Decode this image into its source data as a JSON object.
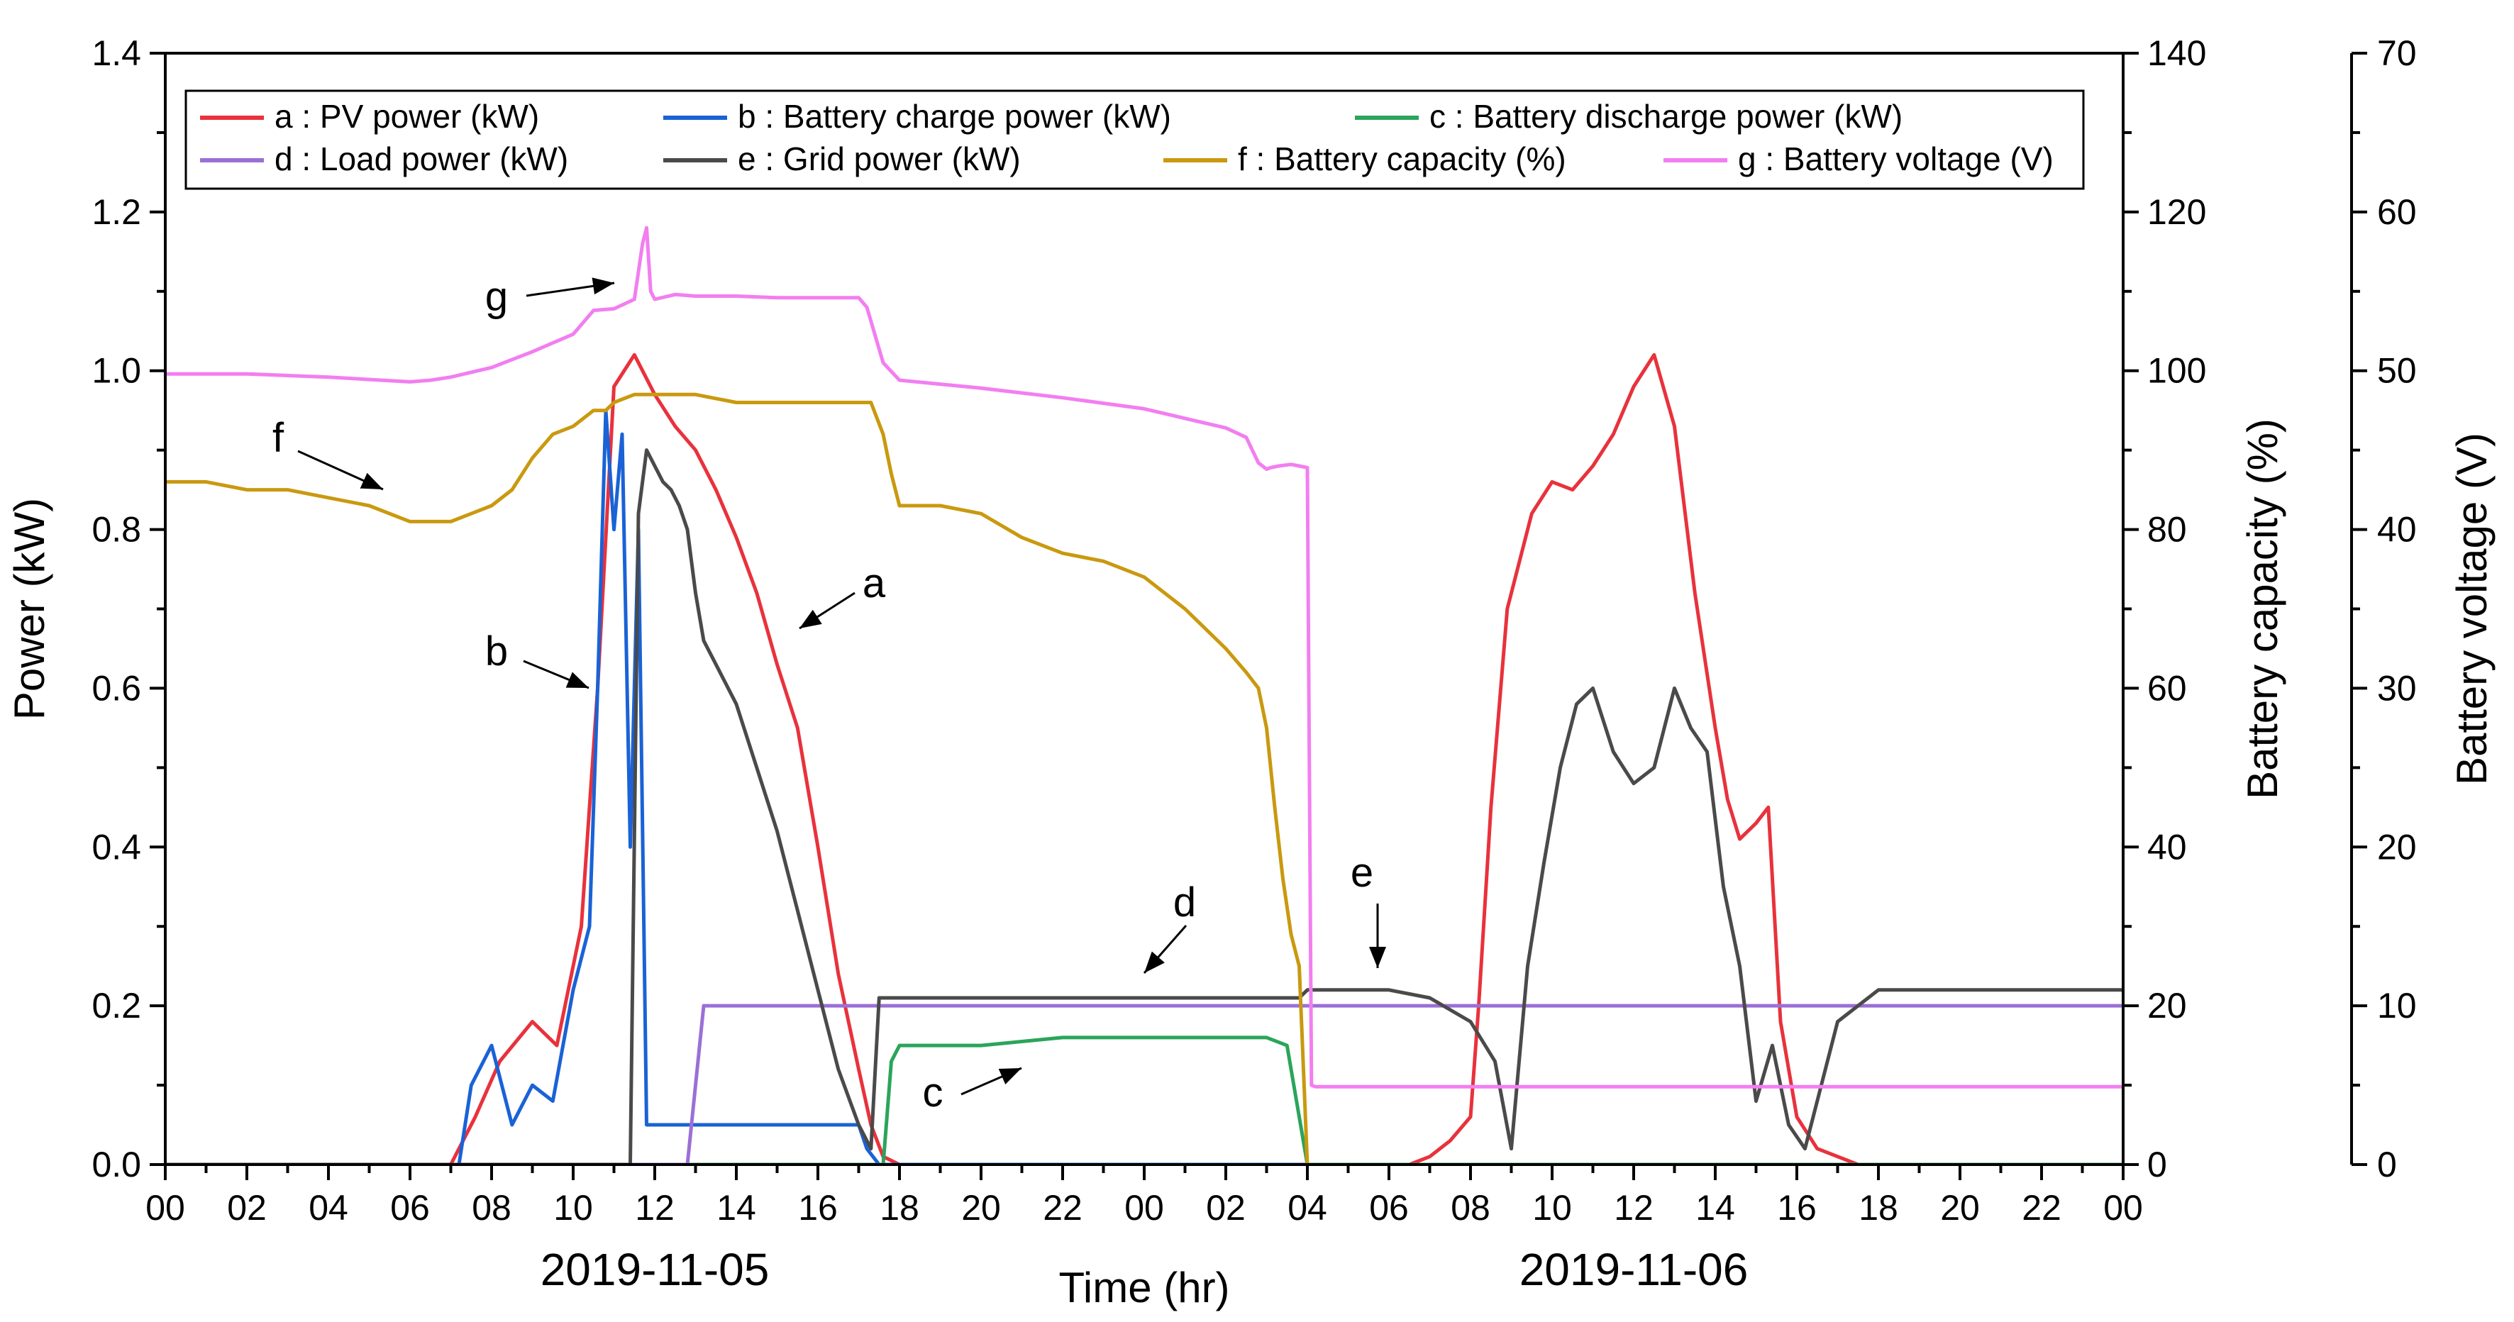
{
  "chart_data": {
    "type": "line",
    "title": "",
    "xlabel": "Time (hr)",
    "ylabel": "Power (kW)",
    "y2label": "Battery capacity (%)",
    "y3label": "Battery voltage (V)",
    "ylim": [
      0,
      1.4
    ],
    "y2lim": [
      0,
      140
    ],
    "y3lim": [
      0,
      70
    ],
    "yticks": [
      "0.0",
      "0.2",
      "0.4",
      "0.6",
      "0.8",
      "1.0",
      "1.2",
      "1.4"
    ],
    "y2ticks": [
      "0",
      "20",
      "40",
      "60",
      "80",
      "100",
      "120",
      "140"
    ],
    "y3ticks": [
      "0",
      "10",
      "20",
      "30",
      "40",
      "50",
      "60",
      "70"
    ],
    "xlim": [
      0,
      48
    ],
    "xticks": [
      "00",
      "02",
      "04",
      "06",
      "08",
      "10",
      "12",
      "14",
      "16",
      "18",
      "20",
      "22",
      "00",
      "02",
      "04",
      "06",
      "08",
      "10",
      "12",
      "14",
      "16",
      "18",
      "20",
      "22",
      "00"
    ],
    "dates": [
      "2019-11-05",
      "2019-11-06"
    ],
    "grid": false,
    "legend_position": "top-left",
    "series": [
      {
        "key": "a",
        "name": "a : PV power (kW)",
        "color": "#e8323c",
        "axis": "y1",
        "x": [
          0,
          7.0,
          7.6,
          8.2,
          9.0,
          9.6,
          10.2,
          10.6,
          11.0,
          11.5,
          12.0,
          12.5,
          13.0,
          13.5,
          14.0,
          14.5,
          15.0,
          15.5,
          16.0,
          16.5,
          17.0,
          17.3,
          17.6,
          18.0,
          30.5,
          31.0,
          31.5,
          32.0,
          32.2,
          32.5,
          32.9,
          33.5,
          34.0,
          34.5,
          35.0,
          35.5,
          36.0,
          36.5,
          37.0,
          37.5,
          38.0,
          38.3,
          38.6,
          39.0,
          39.3,
          39.6,
          40.0,
          40.5,
          41.5,
          48.0
        ],
        "y": [
          0,
          0,
          0.06,
          0.13,
          0.18,
          0.15,
          0.3,
          0.6,
          0.98,
          1.02,
          0.97,
          0.93,
          0.9,
          0.85,
          0.79,
          0.72,
          0.63,
          0.55,
          0.4,
          0.24,
          0.12,
          0.05,
          0.01,
          0,
          0,
          0.01,
          0.03,
          0.06,
          0.2,
          0.45,
          0.7,
          0.82,
          0.86,
          0.85,
          0.88,
          0.92,
          0.98,
          1.02,
          0.93,
          0.72,
          0.55,
          0.46,
          0.41,
          0.43,
          0.45,
          0.18,
          0.06,
          0.02,
          0,
          0
        ]
      },
      {
        "key": "b",
        "name": "b : Battery charge power (kW)",
        "color": "#1a62d6",
        "axis": "y1",
        "x": [
          0,
          7.2,
          7.5,
          8.0,
          8.5,
          9.0,
          9.5,
          10.0,
          10.4,
          10.6,
          10.8,
          11.0,
          11.2,
          11.4,
          11.6,
          11.8,
          12.0,
          13.0,
          13.5,
          14.0,
          15.0,
          16.0,
          16.5,
          17.0,
          17.2,
          17.5,
          48.0
        ],
        "y": [
          0,
          0,
          0.1,
          0.15,
          0.05,
          0.1,
          0.08,
          0.22,
          0.3,
          0.6,
          0.95,
          0.8,
          0.92,
          0.4,
          0.8,
          0.05,
          0.05,
          0.05,
          0.05,
          0.05,
          0.05,
          0.05,
          0.05,
          0.05,
          0.02,
          0,
          0
        ]
      },
      {
        "key": "c",
        "name": "c : Battery discharge power (kW)",
        "color": "#2aa55a",
        "axis": "y1",
        "x": [
          0,
          17.6,
          17.8,
          18.0,
          20.0,
          22.0,
          24.0,
          25.0,
          26.0,
          27.0,
          27.5,
          28.0,
          48.0
        ],
        "y": [
          0,
          0,
          0.13,
          0.15,
          0.15,
          0.16,
          0.16,
          0.16,
          0.16,
          0.16,
          0.15,
          0,
          0
        ]
      },
      {
        "key": "d",
        "name": "d : Load power (kW)",
        "color": "#9b6fd6",
        "axis": "y1",
        "x": [
          0,
          12.8,
          13.0,
          13.2,
          14.0,
          16.0,
          18.0,
          20.0,
          22.0,
          24.0,
          26.0,
          28.0,
          30.0,
          32.0,
          34.0,
          36.0,
          38.0,
          40.0,
          42.0,
          44.0,
          46.0,
          48.0
        ],
        "y": [
          0,
          0,
          0.1,
          0.2,
          0.2,
          0.2,
          0.2,
          0.2,
          0.2,
          0.2,
          0.2,
          0.2,
          0.2,
          0.2,
          0.2,
          0.2,
          0.2,
          0.2,
          0.2,
          0.2,
          0.2,
          0.2
        ]
      },
      {
        "key": "e",
        "name": "e : Grid power (kW)",
        "color": "#4a4a4a",
        "axis": "y1",
        "x": [
          0,
          11.4,
          11.6,
          11.8,
          12.0,
          12.2,
          12.4,
          12.6,
          12.8,
          13.0,
          13.2,
          13.5,
          14.0,
          14.5,
          15.0,
          15.5,
          16.0,
          16.5,
          17.0,
          17.3,
          17.5,
          17.7,
          27.5,
          27.8,
          28.0,
          30.0,
          31.0,
          32.0,
          32.6,
          33.0,
          33.4,
          33.8,
          34.2,
          34.6,
          35.0,
          35.5,
          36.0,
          36.5,
          37.0,
          37.4,
          37.8,
          38.2,
          38.6,
          39.0,
          39.4,
          39.8,
          40.2,
          40.6,
          41.0,
          42.0,
          44.0,
          46.0,
          48.0
        ],
        "y": [
          0,
          0,
          0.82,
          0.9,
          0.88,
          0.86,
          0.85,
          0.83,
          0.8,
          0.72,
          0.66,
          0.63,
          0.58,
          0.5,
          0.42,
          0.32,
          0.22,
          0.12,
          0.05,
          0.02,
          0.21,
          0.21,
          0.21,
          0.21,
          0.22,
          0.22,
          0.21,
          0.18,
          0.13,
          0.02,
          0.25,
          0.38,
          0.5,
          0.58,
          0.6,
          0.52,
          0.48,
          0.5,
          0.6,
          0.55,
          0.52,
          0.35,
          0.25,
          0.08,
          0.15,
          0.05,
          0.02,
          0.1,
          0.18,
          0.22,
          0.22,
          0.22,
          0.22
        ]
      },
      {
        "key": "f",
        "name": "f : Battery capacity (%)",
        "color": "#c9990f",
        "axis": "y2",
        "x": [
          0,
          1,
          2,
          3,
          4,
          5,
          6,
          6.5,
          7,
          7.5,
          8,
          8.5,
          9,
          9.5,
          10,
          10.5,
          10.8,
          11.0,
          11.5,
          12,
          13,
          14,
          15,
          16,
          17,
          17.3,
          17.6,
          17.8,
          18,
          19,
          20,
          21,
          22,
          23,
          24,
          25,
          26,
          26.5,
          26.8,
          27.0,
          27.2,
          27.4,
          27.6,
          27.8,
          28.0
        ],
        "y": [
          86,
          86,
          85,
          85,
          84,
          83,
          81,
          81,
          81,
          82,
          83,
          85,
          89,
          92,
          93,
          95,
          95,
          96,
          97,
          97,
          97,
          96,
          96,
          96,
          96,
          96,
          92,
          87,
          83,
          83,
          82,
          79,
          77,
          76,
          74,
          70,
          65,
          62,
          60,
          55,
          45,
          36,
          29,
          25,
          0
        ]
      },
      {
        "key": "g",
        "name": "g : Battery voltage (V)",
        "color": "#f27ef0",
        "axis": "y3",
        "x": [
          0,
          2,
          4,
          6,
          6.5,
          7,
          8,
          9,
          10,
          10.5,
          11,
          11.5,
          11.7,
          11.8,
          11.9,
          12,
          12.5,
          13,
          14,
          15,
          16,
          17,
          17.2,
          17.6,
          18,
          20,
          22,
          24,
          25,
          26,
          26.5,
          26.8,
          27.0,
          27.1,
          27.3,
          27.6,
          27.8,
          28.0,
          28.1,
          28.2,
          30,
          32,
          34,
          36,
          38,
          40,
          42,
          44,
          46,
          48
        ],
        "y": [
          49.8,
          49.8,
          49.6,
          49.3,
          49.4,
          49.6,
          50.2,
          51.2,
          52.3,
          53.8,
          53.9,
          54.5,
          58.0,
          59.0,
          55.0,
          54.5,
          54.8,
          54.7,
          54.7,
          54.6,
          54.6,
          54.6,
          54.0,
          50.5,
          49.4,
          48.9,
          48.3,
          47.6,
          47.0,
          46.4,
          45.8,
          44.2,
          43.8,
          43.9,
          44.0,
          44.1,
          44.0,
          43.9,
          5.0,
          4.9,
          4.9,
          4.9,
          4.9,
          4.9,
          4.9,
          4.9,
          4.9,
          4.9,
          4.9,
          4.9
        ]
      }
    ],
    "annotations": [
      {
        "label": "a"
      },
      {
        "label": "b"
      },
      {
        "label": "c"
      },
      {
        "label": "d"
      },
      {
        "label": "e"
      },
      {
        "label": "f"
      },
      {
        "label": "g"
      }
    ]
  }
}
